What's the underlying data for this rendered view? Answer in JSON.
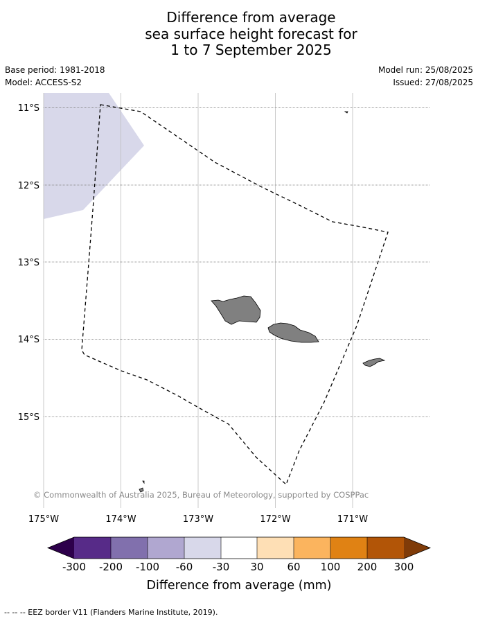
{
  "title": {
    "line1": "Difference from average",
    "line2": "sea surface height forecast for",
    "line3": "1 to 7 September 2025"
  },
  "meta": {
    "base_period": "Base period: 1981-2018",
    "model": "Model: ACCESS-S2",
    "model_run": "Model run: 25/08/2025",
    "issued": "Issued: 27/08/2025"
  },
  "map": {
    "lon_ticks": [
      "175°W",
      "174°W",
      "173°W",
      "172°W",
      "171°W"
    ],
    "lat_ticks": [
      "11°S",
      "12°S",
      "13°S",
      "14°S",
      "15°S"
    ],
    "copyright": "© Commonwealth of Australia 2025, Bureau of Meteorology, supported by COSPPac",
    "anomaly_region_color": "#d8d8ea",
    "land_color": "#808080"
  },
  "colorbar": {
    "label": "Difference from average (mm)",
    "ticks": [
      "-300",
      "-200",
      "-100",
      "-60",
      "-30",
      "30",
      "60",
      "100",
      "200",
      "300"
    ],
    "colors": [
      "#572b88",
      "#8170ad",
      "#b0a7d0",
      "#d8d8ea",
      "#ffffff",
      "#fedfb5",
      "#fbb45e",
      "#e08214",
      "#b25507"
    ],
    "under_color": "#2d004b",
    "over_color": "#7f3b08"
  },
  "footnote": "--  --  -- EEZ border V11 (Flanders Marine Institute, 2019)."
}
